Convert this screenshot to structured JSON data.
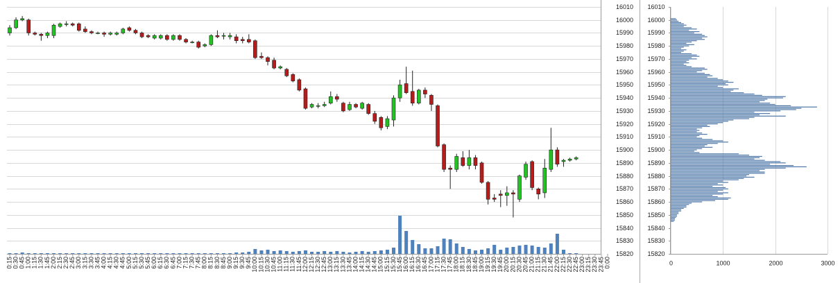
{
  "chart_data": [
    {
      "type": "candlestick",
      "categories": [
        "0:15",
        "0:30",
        "0:45",
        "1:00",
        "1:15",
        "1:30",
        "1:45",
        "2:00",
        "2:15",
        "2:30",
        "2:45",
        "3:00",
        "3:15",
        "3:30",
        "3:45",
        "4:00",
        "4:15",
        "4:30",
        "4:45",
        "5:00",
        "5:15",
        "5:30",
        "5:45",
        "6:00",
        "6:15",
        "6:30",
        "6:45",
        "7:00",
        "7:15",
        "7:30",
        "7:45",
        "8:00",
        "8:15",
        "8:30",
        "8:45",
        "9:00",
        "9:15",
        "9:30",
        "9:45",
        "10:00",
        "10:15",
        "10:30",
        "10:45",
        "11:00",
        "11:15",
        "11:30",
        "11:45",
        "12:00",
        "12:15",
        "12:30",
        "12:45",
        "13:00",
        "13:15",
        "13:30",
        "13:45",
        "14:00",
        "14:15",
        "14:30",
        "14:45",
        "15:00",
        "15:15",
        "15:30",
        "15:45",
        "16:00",
        "16:15",
        "16:30",
        "16:45",
        "17:00",
        "17:15",
        "17:30",
        "17:45",
        "18:00",
        "18:15",
        "18:30",
        "18:45",
        "19:00",
        "19:15",
        "19:30",
        "19:45",
        "20:00",
        "20:15",
        "20:30",
        "20:45",
        "21:00",
        "21:15",
        "21:30",
        "21:45",
        "22:00",
        "22:15",
        "22:30",
        "22:45",
        "23:00",
        "23:15",
        "23:30",
        "23:45",
        "0:00"
      ],
      "open": [
        15990,
        15994,
        16000,
        16000,
        15990,
        15989,
        15988,
        15988,
        15995,
        15997,
        15997,
        15997,
        15993,
        15991,
        15990,
        15990,
        15989,
        15989,
        15990,
        15994,
        15992,
        15990,
        15988,
        15986,
        15986,
        15988,
        15985,
        15988,
        15985,
        15983,
        15983,
        15980,
        15981,
        15988,
        15988,
        15987,
        15987,
        15985,
        15985,
        15984,
        15972,
        15971,
        15969,
        15963,
        15962,
        15958,
        15954,
        15947,
        15933,
        15934,
        15934,
        15936,
        15941,
        15936,
        15931,
        15935,
        15932,
        15935,
        15928,
        15925,
        15918,
        15923,
        15940,
        15951,
        15945,
        15936,
        15946,
        15942,
        15934,
        15904,
        15886,
        15885,
        15894,
        15888,
        15894,
        15890,
        15875,
        15863,
        15866,
        15865,
        15867,
        15862,
        15879,
        15891,
        15870,
        15867,
        15885,
        15900,
        15891,
        15892,
        15893,
        null,
        null,
        null,
        null,
        null
      ],
      "high": [
        15996,
        16002,
        16003,
        16001,
        15991,
        15990,
        15991,
        15997,
        15998,
        15999,
        15998,
        15998,
        15995,
        15992,
        15991,
        15991,
        15991,
        15991,
        15994,
        15995,
        15993,
        15991,
        15989,
        15989,
        15989,
        15989,
        15989,
        15989,
        15986,
        15984,
        15984,
        15982,
        15989,
        15992,
        15990,
        15990,
        15989,
        15987,
        15989,
        15985,
        15975,
        15972,
        15971,
        15965,
        15963,
        15959,
        15955,
        15948,
        15936,
        15936,
        15937,
        15945,
        15943,
        15937,
        15937,
        15936,
        15937,
        15936,
        15930,
        15926,
        15926,
        15942,
        15954,
        15964,
        15961,
        15947,
        15948,
        15943,
        15935,
        15905,
        15888,
        15897,
        15899,
        15900,
        15896,
        15891,
        15876,
        15866,
        15869,
        15872,
        15869,
        15881,
        15891,
        15892,
        15871,
        15893,
        15917,
        15902,
        15893,
        15894,
        15895,
        null,
        null,
        null,
        null,
        null
      ],
      "low": [
        15988,
        15993,
        15999,
        15988,
        15988,
        15984,
        15986,
        15986,
        15994,
        15995,
        15995,
        15991,
        15990,
        15989,
        15989,
        15987,
        15988,
        15988,
        15989,
        15991,
        15989,
        15986,
        15986,
        15985,
        15985,
        15984,
        15984,
        15984,
        15982,
        15982,
        15978,
        15979,
        15980,
        15986,
        15985,
        15985,
        15982,
        15982,
        15982,
        15970,
        15970,
        15965,
        15962,
        15962,
        15956,
        15952,
        15945,
        15931,
        15932,
        15932,
        15933,
        15935,
        15937,
        15929,
        15930,
        15932,
        15931,
        15927,
        15920,
        15915,
        15916,
        15918,
        15937,
        15943,
        15934,
        15935,
        15940,
        15930,
        15902,
        15883,
        15870,
        15883,
        15887,
        15885,
        15885,
        15874,
        15858,
        15860,
        15856,
        15857,
        15848,
        15860,
        15877,
        15869,
        15862,
        15863,
        15883,
        15887,
        15887,
        15891,
        15892,
        null,
        null,
        null,
        null,
        null
      ],
      "close": [
        15994,
        16000,
        16001,
        15990,
        15989,
        15988,
        15990,
        15996,
        15997,
        15997,
        15996,
        15992,
        15991,
        15990,
        15990,
        15989,
        15990,
        15990,
        15993,
        15992,
        15990,
        15987,
        15987,
        15988,
        15988,
        15985,
        15988,
        15985,
        15983,
        15983,
        15979,
        15981,
        15988,
        15987,
        15988,
        15988,
        15984,
        15984,
        15983,
        15971,
        15971,
        15968,
        15963,
        15964,
        15957,
        15953,
        15946,
        15932,
        15935,
        15934,
        15935,
        15941,
        15939,
        15930,
        15935,
        15933,
        15936,
        15928,
        15922,
        15917,
        15924,
        15940,
        15950,
        15944,
        15936,
        15946,
        15943,
        15935,
        15903,
        15885,
        15885,
        15895,
        15888,
        15894,
        15888,
        15875,
        15862,
        15862,
        15865,
        15867,
        15866,
        15880,
        15889,
        15871,
        15866,
        15886,
        15900,
        15889,
        15892,
        15893,
        15894,
        null,
        null,
        null,
        null,
        null
      ],
      "volume": [
        20,
        20,
        40,
        20,
        20,
        20,
        20,
        20,
        20,
        20,
        20,
        20,
        20,
        20,
        20,
        20,
        20,
        20,
        20,
        20,
        20,
        20,
        20,
        20,
        20,
        20,
        20,
        20,
        20,
        20,
        20,
        20,
        20,
        20,
        20,
        20,
        40,
        40,
        60,
        140,
        100,
        120,
        80,
        100,
        80,
        60,
        80,
        100,
        60,
        60,
        80,
        60,
        80,
        60,
        40,
        60,
        80,
        60,
        80,
        100,
        120,
        180,
        1100,
        660,
        400,
        280,
        160,
        160,
        220,
        440,
        420,
        300,
        200,
        140,
        100,
        120,
        160,
        260,
        120,
        180,
        200,
        240,
        260,
        240,
        200,
        180,
        300,
        580,
        120,
        20,
        20,
        null,
        null,
        null,
        null,
        null
      ],
      "ylim": [
        15820,
        16010
      ],
      "yticks": [
        15820,
        15830,
        15840,
        15850,
        15860,
        15870,
        15880,
        15890,
        15900,
        15910,
        15920,
        15930,
        15940,
        15950,
        15960,
        15970,
        15980,
        15990,
        16000,
        16010
      ],
      "grid": true,
      "up_color": "#22c322",
      "down_color": "#b51c1c",
      "volume_color": "#4f81bd"
    },
    {
      "type": "barh",
      "y": [
        16001,
        16000,
        15999,
        15998,
        15997,
        15996,
        15995,
        15994,
        15993,
        15992,
        15991,
        15990,
        15989,
        15988,
        15987,
        15986,
        15985,
        15984,
        15983,
        15982,
        15981,
        15980,
        15979,
        15978,
        15977,
        15976,
        15975,
        15974,
        15973,
        15972,
        15971,
        15970,
        15969,
        15968,
        15967,
        15966,
        15965,
        15964,
        15963,
        15962,
        15961,
        15960,
        15959,
        15958,
        15957,
        15956,
        15955,
        15954,
        15953,
        15952,
        15951,
        15950,
        15949,
        15948,
        15947,
        15946,
        15945,
        15944,
        15943,
        15942,
        15941,
        15940,
        15939,
        15938,
        15937,
        15936,
        15935,
        15934,
        15933,
        15932,
        15931,
        15930,
        15929,
        15928,
        15927,
        15926,
        15925,
        15924,
        15923,
        15922,
        15921,
        15920,
        15919,
        15918,
        15917,
        15916,
        15915,
        15914,
        15913,
        15912,
        15911,
        15910,
        15909,
        15908,
        15907,
        15906,
        15905,
        15904,
        15903,
        15902,
        15901,
        15900,
        15899,
        15898,
        15897,
        15896,
        15895,
        15894,
        15893,
        15892,
        15891,
        15890,
        15889,
        15888,
        15887,
        15886,
        15885,
        15884,
        15883,
        15882,
        15881,
        15880,
        15879,
        15878,
        15877,
        15876,
        15875,
        15874,
        15873,
        15872,
        15871,
        15870,
        15869,
        15868,
        15867,
        15866,
        15865,
        15864,
        15863,
        15862,
        15861,
        15860,
        15859,
        15858,
        15857,
        15856,
        15855,
        15854,
        15853,
        15852,
        15851,
        15850,
        15849,
        15848,
        15847,
        15846,
        15845
      ],
      "values": [
        100,
        120,
        150,
        200,
        250,
        300,
        250,
        400,
        500,
        350,
        550,
        450,
        600,
        650,
        700,
        600,
        650,
        500,
        400,
        300,
        450,
        350,
        250,
        200,
        300,
        250,
        200,
        400,
        500,
        550,
        400,
        500,
        350,
        300,
        350,
        250,
        300,
        400,
        650,
        700,
        600,
        500,
        650,
        750,
        800,
        700,
        900,
        1000,
        1100,
        1200,
        1050,
        1100,
        900,
        1000,
        1300,
        1200,
        1150,
        1400,
        1600,
        1750,
        2200,
        2150,
        1850,
        1800,
        1700,
        1900,
        2000,
        2300,
        2800,
        2500,
        2400,
        2100,
        1600,
        1900,
        1700,
        2200,
        1600,
        1500,
        1200,
        1100,
        1000,
        900,
        700,
        750,
        600,
        500,
        550,
        500,
        600,
        700,
        550,
        500,
        600,
        800,
        1000,
        1100,
        900,
        700,
        650,
        800,
        600,
        500,
        450,
        550,
        1300,
        1500,
        1750,
        1700,
        1600,
        1800,
        2100,
        2200,
        1900,
        2350,
        2600,
        2200,
        1800,
        1700,
        1800,
        1800,
        1500,
        1450,
        1600,
        1400,
        1300,
        1000,
        1100,
        900,
        1000,
        800,
        1050,
        1100,
        1000,
        900,
        1100,
        1000,
        800,
        900,
        1150,
        1100,
        850,
        600,
        400,
        350,
        300,
        300,
        250,
        200,
        200,
        150,
        150,
        120,
        120,
        100,
        80,
        80,
        60
      ],
      "xlim": [
        0,
        3000
      ],
      "xticks": [
        0,
        1000,
        2000,
        3000
      ],
      "ylim": [
        15820,
        16010
      ],
      "yticks": [
        15820,
        15830,
        15840,
        15850,
        15860,
        15870,
        15880,
        15890,
        15900,
        15910,
        15920,
        15930,
        15940,
        15950,
        15960,
        15970,
        15980,
        15990,
        16000,
        16010
      ],
      "grid": true,
      "color": "#4f78a8"
    }
  ]
}
